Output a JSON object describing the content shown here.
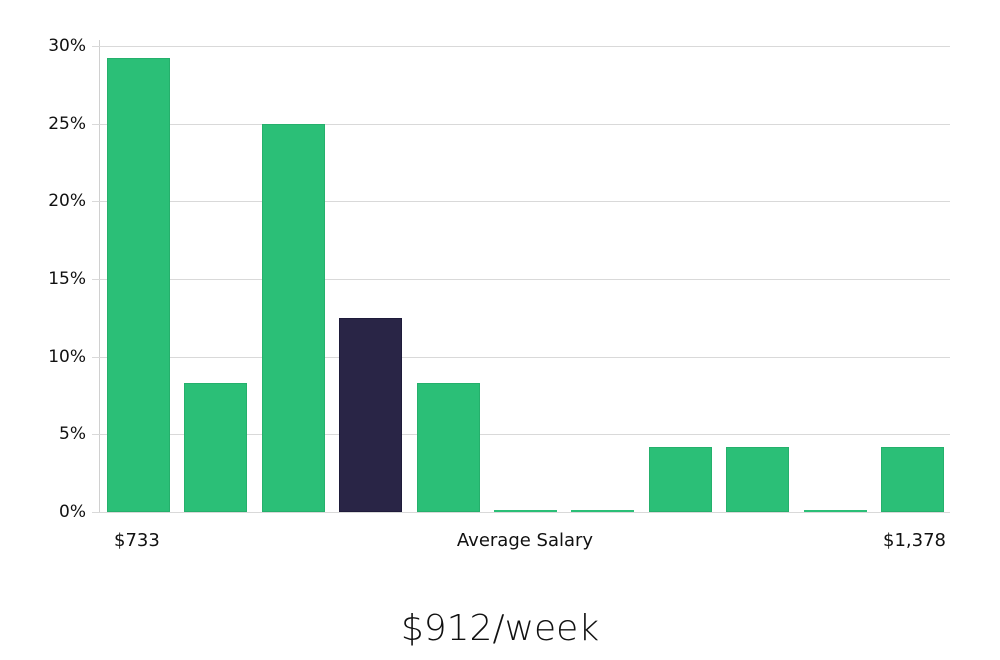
{
  "chart_data": {
    "type": "bar",
    "title": "",
    "xlabel": "Average Salary",
    "ylabel": "",
    "ylim": [
      0,
      30
    ],
    "yticks": [
      "0%",
      "5%",
      "10%",
      "15%",
      "20%",
      "25%",
      "30%"
    ],
    "x_range_labels": {
      "min": "$733",
      "max": "$1,378"
    },
    "categories": [
      "bin1",
      "bin2",
      "bin3",
      "bin4",
      "bin5",
      "bin6",
      "bin7",
      "bin8",
      "bin9",
      "bin10",
      "bin11"
    ],
    "values": [
      29.2,
      8.3,
      25.0,
      12.5,
      8.3,
      0,
      0,
      4.2,
      4.2,
      0,
      4.2
    ],
    "highlight_index": 3,
    "colors": {
      "bar": "#2bbf77",
      "highlight": "#292546",
      "grid": "#d9d9d9"
    },
    "grid": true,
    "legend": null
  },
  "axis": {
    "min_label": "$733",
    "center_label": "Average Salary",
    "max_label": "$1,378"
  },
  "summary": {
    "value": "$912/week"
  }
}
